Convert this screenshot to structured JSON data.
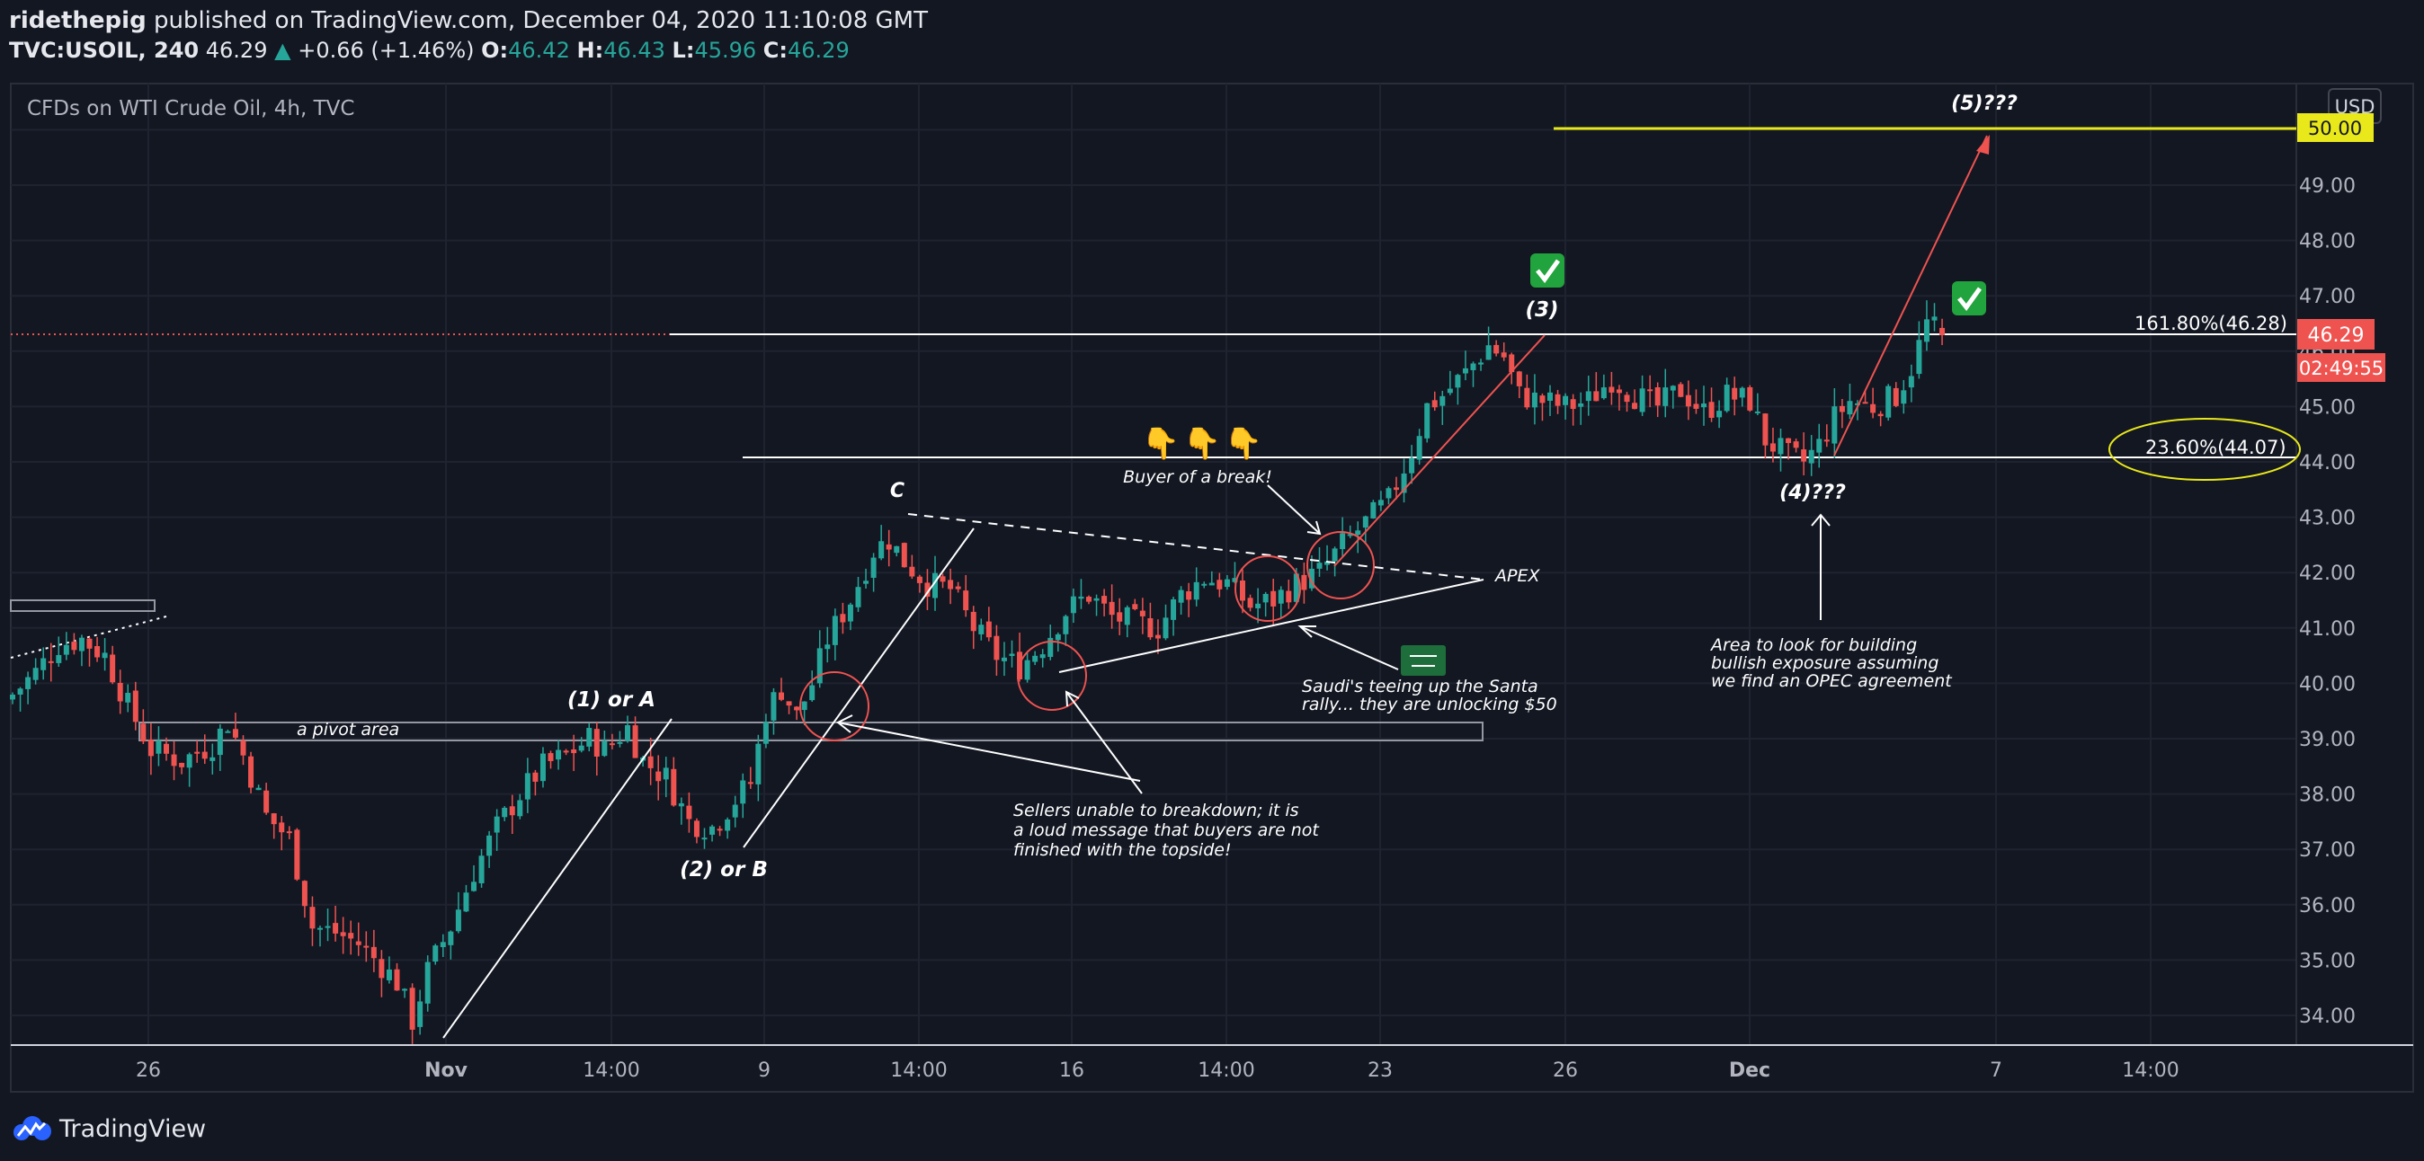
{
  "header": {
    "author": "ridethepig",
    "published_text": "published on TradingView.com, December 04, 2020 11:10:08 GMT",
    "symbol": "TVC:USOIL, 240",
    "last": "46.29",
    "change": "+0.66 (+1.46%)",
    "o_label": "O:",
    "o": "46.42",
    "h_label": "H:",
    "h": "46.43",
    "l_label": "L:",
    "l": "45.96",
    "c_label": "C:",
    "c": "46.29"
  },
  "chart_title": "CFDs on WTI Crude Oil, 4h, TVC",
  "currency": "USD",
  "price_tag": "46.29",
  "countdown": "02:49:55",
  "level_50": "50.00",
  "footer": {
    "brand": "TradingView"
  },
  "colors": {
    "background": "#131722",
    "up": "#26a69a",
    "down": "#ef5350",
    "current_price": "#ef5350",
    "target_line": "#e8e81a",
    "annotation": "#ffffff"
  },
  "annotations": {
    "wave1": "(1) or A",
    "wave2": "(2) or B",
    "waveC": "C",
    "wave3": "(3)",
    "wave4": "(4)???",
    "wave5": "(5)???",
    "pivot": "a pivot area",
    "buyer": "Buyer of a break!",
    "apex": "APEX",
    "saudi": [
      "Saudi's teeing up the Santa",
      "rally... they are unlocking $50"
    ],
    "sellers": [
      "Sellers unable to breakdown; it is",
      "a loud message that buyers are not",
      "finished with the topside!"
    ],
    "area": [
      "Area to look for building",
      "bullish exposure assuming",
      "we find an OPEC agreement"
    ],
    "fib161": "161.80%(46.28)",
    "fib236": "23.60%(44.07)"
  },
  "chart_data": {
    "type": "candlestick",
    "symbol": "TVC:USOIL",
    "timeframe": "240",
    "x_tick_labels": [
      "26",
      "Nov",
      "14:00",
      "9",
      "14:00",
      "16",
      "14:00",
      "23",
      "26",
      "Dec",
      "7",
      "14:00"
    ],
    "y_tick_labels": [
      "34.00",
      "35.00",
      "36.00",
      "37.00",
      "38.00",
      "39.00",
      "40.00",
      "41.00",
      "42.00",
      "43.00",
      "44.00",
      "45.00",
      "46.00",
      "47.00",
      "48.00",
      "49.00",
      "50.00"
    ],
    "y_range": [
      33.5,
      50.7
    ],
    "last_ohlc": {
      "open": 46.42,
      "high": 46.43,
      "low": 45.96,
      "close": 46.29
    },
    "levels": [
      {
        "name": "161.80%",
        "value": 46.28
      },
      {
        "name": "23.60%",
        "value": 44.07
      },
      {
        "name": "target",
        "value": 50.0
      }
    ],
    "waypoints": [
      [
        0,
        39.8
      ],
      [
        3,
        40.2
      ],
      [
        6,
        40.7
      ],
      [
        9,
        40.8
      ],
      [
        12,
        40.5
      ],
      [
        15,
        39.6
      ],
      [
        18,
        38.8
      ],
      [
        22,
        38.6
      ],
      [
        26,
        38.9
      ],
      [
        28,
        39.3
      ],
      [
        30,
        38.7
      ],
      [
        33,
        37.6
      ],
      [
        36,
        37.2
      ],
      [
        39,
        35.6
      ],
      [
        42,
        35.5
      ],
      [
        45,
        35.3
      ],
      [
        48,
        34.9
      ],
      [
        50,
        34.6
      ],
      [
        52,
        33.9
      ],
      [
        54,
        34.8
      ],
      [
        57,
        35.6
      ],
      [
        60,
        36.6
      ],
      [
        63,
        37.4
      ],
      [
        66,
        38.0
      ],
      [
        69,
        38.5
      ],
      [
        72,
        38.7
      ],
      [
        75,
        39.0
      ],
      [
        77,
        38.8
      ],
      [
        80,
        39.2
      ],
      [
        82,
        38.6
      ],
      [
        85,
        38.3
      ],
      [
        88,
        37.5
      ],
      [
        91,
        37.4
      ],
      [
        94,
        37.9
      ],
      [
        96,
        38.2
      ],
      [
        98,
        39.5
      ],
      [
        100,
        39.9
      ],
      [
        102,
        39.4
      ],
      [
        104,
        40.0
      ],
      [
        106,
        40.8
      ],
      [
        109,
        41.5
      ],
      [
        112,
        42.4
      ],
      [
        114,
        42.6
      ],
      [
        116,
        42.2
      ],
      [
        119,
        41.8
      ],
      [
        122,
        41.7
      ],
      [
        125,
        41.0
      ],
      [
        128,
        40.5
      ],
      [
        131,
        40.3
      ],
      [
        134,
        40.7
      ],
      [
        137,
        41.3
      ],
      [
        140,
        41.6
      ],
      [
        143,
        41.2
      ],
      [
        146,
        41.1
      ],
      [
        149,
        41.0
      ],
      [
        152,
        41.6
      ],
      [
        155,
        41.9
      ],
      [
        158,
        41.8
      ],
      [
        161,
        41.4
      ],
      [
        164,
        41.5
      ],
      [
        167,
        41.8
      ],
      [
        170,
        42.0
      ],
      [
        173,
        42.5
      ],
      [
        176,
        42.9
      ],
      [
        179,
        43.3
      ],
      [
        182,
        44.2
      ],
      [
        184,
        45.0
      ],
      [
        186,
        45.2
      ],
      [
        189,
        45.6
      ],
      [
        192,
        46.1
      ],
      [
        194,
        45.9
      ],
      [
        196,
        45.2
      ],
      [
        199,
        45.1
      ],
      [
        202,
        45.0
      ],
      [
        205,
        45.1
      ],
      [
        208,
        45.5
      ],
      [
        211,
        45.2
      ],
      [
        214,
        45.0
      ],
      [
        217,
        45.3
      ],
      [
        220,
        44.9
      ],
      [
        223,
        45.2
      ],
      [
        226,
        45.1
      ],
      [
        228,
        44.4
      ],
      [
        231,
        44.1
      ],
      [
        233,
        44.0
      ],
      [
        235,
        44.3
      ],
      [
        237,
        44.8
      ],
      [
        239,
        45.1
      ],
      [
        242,
        45.0
      ],
      [
        245,
        45.2
      ],
      [
        247,
        45.7
      ],
      [
        249,
        46.5
      ],
      [
        251,
        46.3
      ]
    ]
  }
}
